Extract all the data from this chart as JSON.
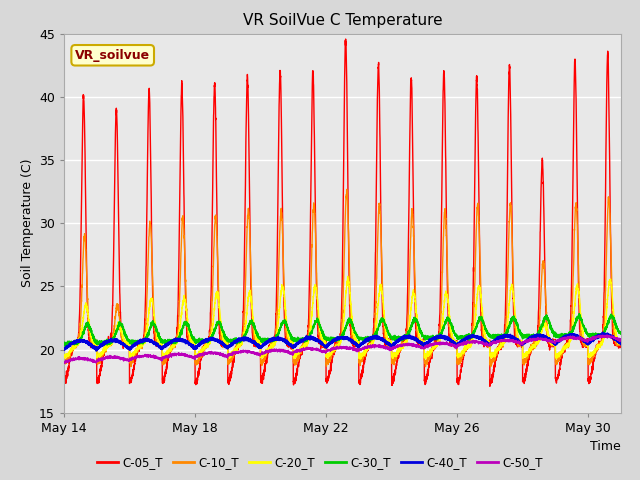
{
  "title": "VR SoilVue C Temperature",
  "xlabel": "Time",
  "ylabel": "Soil Temperature (C)",
  "ylim": [
    15,
    45
  ],
  "yticks": [
    15,
    20,
    25,
    30,
    35,
    40,
    45
  ],
  "x_ticks": [
    "May 14",
    "May 18",
    "May 22",
    "May 26",
    "May 30"
  ],
  "x_tick_days": [
    0,
    4,
    8,
    12,
    16
  ],
  "legend_labels": [
    "C-05_T",
    "C-10_T",
    "C-20_T",
    "C-30_T",
    "C-40_T",
    "C-50_T"
  ],
  "line_colors": [
    "#ff0000",
    "#ff8800",
    "#ffff00",
    "#00cc00",
    "#0000dd",
    "#bb00bb"
  ],
  "line_widths": [
    1.0,
    1.0,
    1.0,
    1.2,
    1.5,
    1.0
  ],
  "annotation_text": "VR_soilvue",
  "bg_color": "#d8d8d8",
  "plot_bg_color": "#e8e8e8",
  "n_days": 17,
  "c05_peaks": [
    40.0,
    39.0,
    40.5,
    41.0,
    41.0,
    41.5,
    42.0,
    42.0,
    44.5,
    42.5,
    41.5,
    42.0,
    41.5,
    42.5,
    35.0,
    43.0,
    43.5
  ],
  "c10_peaks": [
    29.0,
    23.5,
    30.0,
    30.5,
    30.5,
    31.0,
    31.0,
    31.5,
    32.5,
    31.5,
    31.0,
    31.0,
    31.5,
    31.5,
    27.0,
    31.5,
    32.0
  ],
  "c20_peaks": [
    23.5,
    22.0,
    24.0,
    24.0,
    24.5,
    24.5,
    25.0,
    25.0,
    25.5,
    25.0,
    24.5,
    24.5,
    25.0,
    25.0,
    22.0,
    25.0,
    25.5
  ],
  "c30_base": 20.5,
  "c40_base": 20.0,
  "c50_base": 19.0
}
